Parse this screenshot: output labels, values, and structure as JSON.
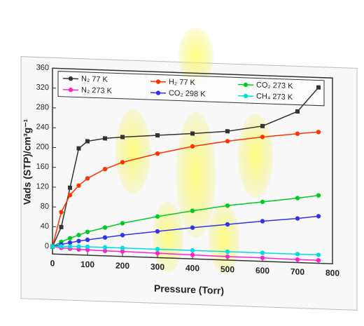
{
  "chart_data": {
    "type": "line",
    "x_label": "Pressure (Torr)",
    "y_label": "Vads (STP)/cm³g⁻¹",
    "x": [
      0,
      25,
      50,
      75,
      100,
      150,
      200,
      300,
      400,
      500,
      600,
      700,
      760
    ],
    "series": [
      {
        "name": "N₂ 77 K",
        "color": "#333333",
        "values": [
          0,
          40,
          120,
          200,
          215,
          222,
          226,
          232,
          238,
          245,
          258,
          290,
          340
        ]
      },
      {
        "name": "H₂ 77 K",
        "color": "#ff3300",
        "values": [
          0,
          70,
          105,
          125,
          140,
          160,
          175,
          195,
          212,
          225,
          236,
          245,
          250
        ]
      },
      {
        "name": "CO₂ 273 K",
        "color": "#00cc22",
        "values": [
          0,
          10,
          18,
          25,
          32,
          42,
          52,
          68,
          82,
          95,
          105,
          115,
          122
        ]
      },
      {
        "name": "N₂ 273 K",
        "color": "#ff22cc",
        "values": [
          0,
          -2,
          -3,
          -4,
          -4,
          -5,
          -5,
          -6,
          -7,
          -8,
          -8,
          -9,
          -9
        ]
      },
      {
        "name": "CO₂ 298 K",
        "color": "#3333ee",
        "values": [
          0,
          5,
          9,
          13,
          16,
          22,
          28,
          38,
          48,
          57,
          66,
          74,
          80
        ]
      },
      {
        "name": "CH₄ 273 K",
        "color": "#00dddd",
        "values": [
          0,
          1,
          1,
          2,
          2,
          2,
          2,
          2,
          2,
          2,
          2,
          2,
          2
        ]
      }
    ],
    "xlim": [
      0,
      800
    ],
    "xticks": [
      0,
      100,
      200,
      300,
      400,
      500,
      600,
      700,
      800
    ],
    "ylim": [
      -15,
      360
    ],
    "yticks": [
      0,
      40,
      80,
      120,
      160,
      200,
      240,
      280,
      320,
      360
    ]
  }
}
